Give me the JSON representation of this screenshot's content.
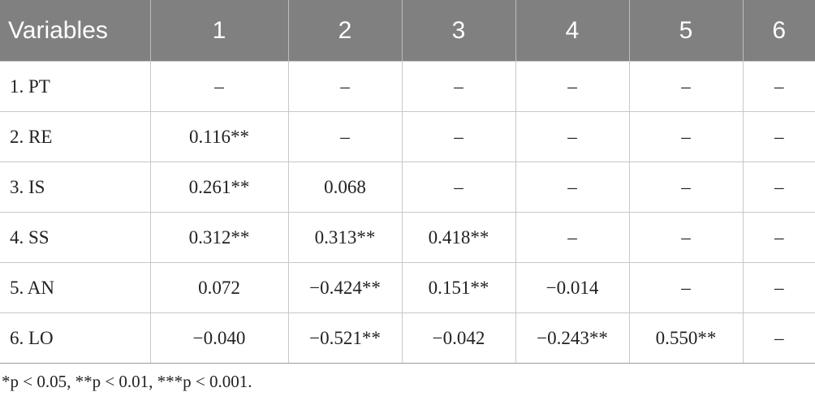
{
  "table": {
    "header": [
      "Variables",
      "1",
      "2",
      "3",
      "4",
      "5",
      "6"
    ],
    "rows": [
      [
        "1. PT",
        "–",
        "–",
        "–",
        "–",
        "–",
        "–"
      ],
      [
        "2. RE",
        "0.116**",
        "–",
        "–",
        "–",
        "–",
        "–"
      ],
      [
        "3. IS",
        "0.261**",
        "0.068",
        "–",
        "–",
        "–",
        "–"
      ],
      [
        "4. SS",
        "0.312**",
        "0.313**",
        "0.418**",
        "–",
        "–",
        "–"
      ],
      [
        "5. AN",
        "0.072",
        "−0.424**",
        "0.151**",
        "−0.014",
        "–",
        "–"
      ],
      [
        "6. LO",
        "−0.040",
        "−0.521**",
        "−0.042",
        "−0.243**",
        "0.550**",
        "–"
      ]
    ]
  },
  "footnote": "*p < 0.05, **p < 0.01, ***p < 0.001."
}
